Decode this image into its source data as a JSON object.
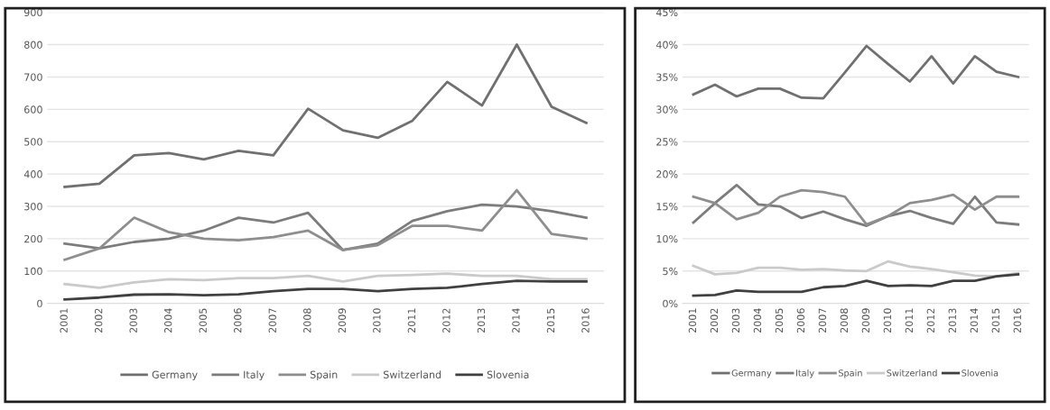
{
  "chart_data": [
    {
      "type": "line",
      "categories": [
        "2001",
        "2002",
        "2003",
        "2004",
        "2005",
        "2006",
        "2007",
        "2008",
        "2009",
        "2010",
        "2011",
        "2012",
        "2013",
        "2014",
        "2015",
        "2016"
      ],
      "series": [
        {
          "name": "Germany",
          "color": "#707070",
          "values": [
            360,
            370,
            458,
            465,
            445,
            472,
            458,
            602,
            535,
            512,
            565,
            685,
            612,
            800,
            608,
            558
          ]
        },
        {
          "name": "Italy",
          "color": "#7c7c7c",
          "values": [
            185,
            170,
            190,
            200,
            225,
            265,
            250,
            280,
            165,
            185,
            255,
            285,
            305,
            300,
            285,
            265
          ]
        },
        {
          "name": "Spain",
          "color": "#8e8e8e",
          "values": [
            135,
            170,
            265,
            220,
            200,
            195,
            205,
            225,
            165,
            180,
            240,
            240,
            225,
            350,
            215,
            200
          ]
        },
        {
          "name": "Switzerland",
          "color": "#cacaca",
          "values": [
            60,
            48,
            65,
            75,
            72,
            78,
            78,
            85,
            68,
            85,
            88,
            92,
            85,
            85,
            75,
            75
          ]
        },
        {
          "name": "Slovenia",
          "color": "#404040",
          "values": [
            12,
            18,
            27,
            28,
            25,
            28,
            38,
            45,
            45,
            38,
            45,
            48,
            60,
            70,
            68,
            68
          ]
        }
      ],
      "ylim": [
        0,
        900
      ],
      "yticks": [
        0,
        100,
        200,
        300,
        400,
        500,
        600,
        700,
        800,
        900
      ],
      "grid": "y",
      "legend": "bottom"
    },
    {
      "type": "line",
      "categories": [
        "2001",
        "2002",
        "2003",
        "2004",
        "2005",
        "2006",
        "2007",
        "2008",
        "2009",
        "2010",
        "2011",
        "2012",
        "2013",
        "2014",
        "2015",
        "2016"
      ],
      "series": [
        {
          "name": "Germany",
          "color": "#707070",
          "values": [
            32.3,
            33.8,
            32,
            33.2,
            33.2,
            31.8,
            31.7,
            35.7,
            39.8,
            37,
            34.3,
            38.2,
            34,
            38.2,
            35.8,
            35
          ]
        },
        {
          "name": "Italy",
          "color": "#7c7c7c",
          "values": [
            12.5,
            15.5,
            18.3,
            15.3,
            15,
            13.2,
            14.2,
            13,
            12,
            13.5,
            14.3,
            13.2,
            12.3,
            16.5,
            12.5,
            12.2
          ]
        },
        {
          "name": "Spain",
          "color": "#8e8e8e",
          "values": [
            16.5,
            15.5,
            13,
            14,
            16.5,
            17.5,
            17.2,
            16.5,
            12.2,
            13.5,
            15.5,
            16,
            16.8,
            14.5,
            16.5,
            16.5
          ]
        },
        {
          "name": "Switzerland",
          "color": "#cacaca",
          "values": [
            5.8,
            4.5,
            4.7,
            5.5,
            5.5,
            5.2,
            5.3,
            5.1,
            5,
            6.5,
            5.7,
            5.3,
            4.8,
            4.3,
            4.2,
            4.7
          ]
        },
        {
          "name": "Slovenia",
          "color": "#404040",
          "values": [
            1.2,
            1.3,
            2,
            1.8,
            1.8,
            1.8,
            2.5,
            2.7,
            3.5,
            2.7,
            2.8,
            2.7,
            3.5,
            3.5,
            4.2,
            4.5
          ]
        }
      ],
      "ylim": [
        0,
        45
      ],
      "yticks": [
        {
          "value": 0,
          "label": "0%"
        },
        {
          "value": 5,
          "label": "5%"
        },
        {
          "value": 10,
          "label": "10%"
        },
        {
          "value": 15,
          "label": "15%"
        },
        {
          "value": 20,
          "label": "20%"
        },
        {
          "value": 25,
          "label": "25%"
        },
        {
          "value": 30,
          "label": "30%"
        },
        {
          "value": 35,
          "label": "35%"
        },
        {
          "value": 40,
          "label": "40%"
        },
        {
          "value": 45,
          "label": "45%"
        }
      ],
      "grid": "y",
      "legend": "bottom"
    }
  ]
}
